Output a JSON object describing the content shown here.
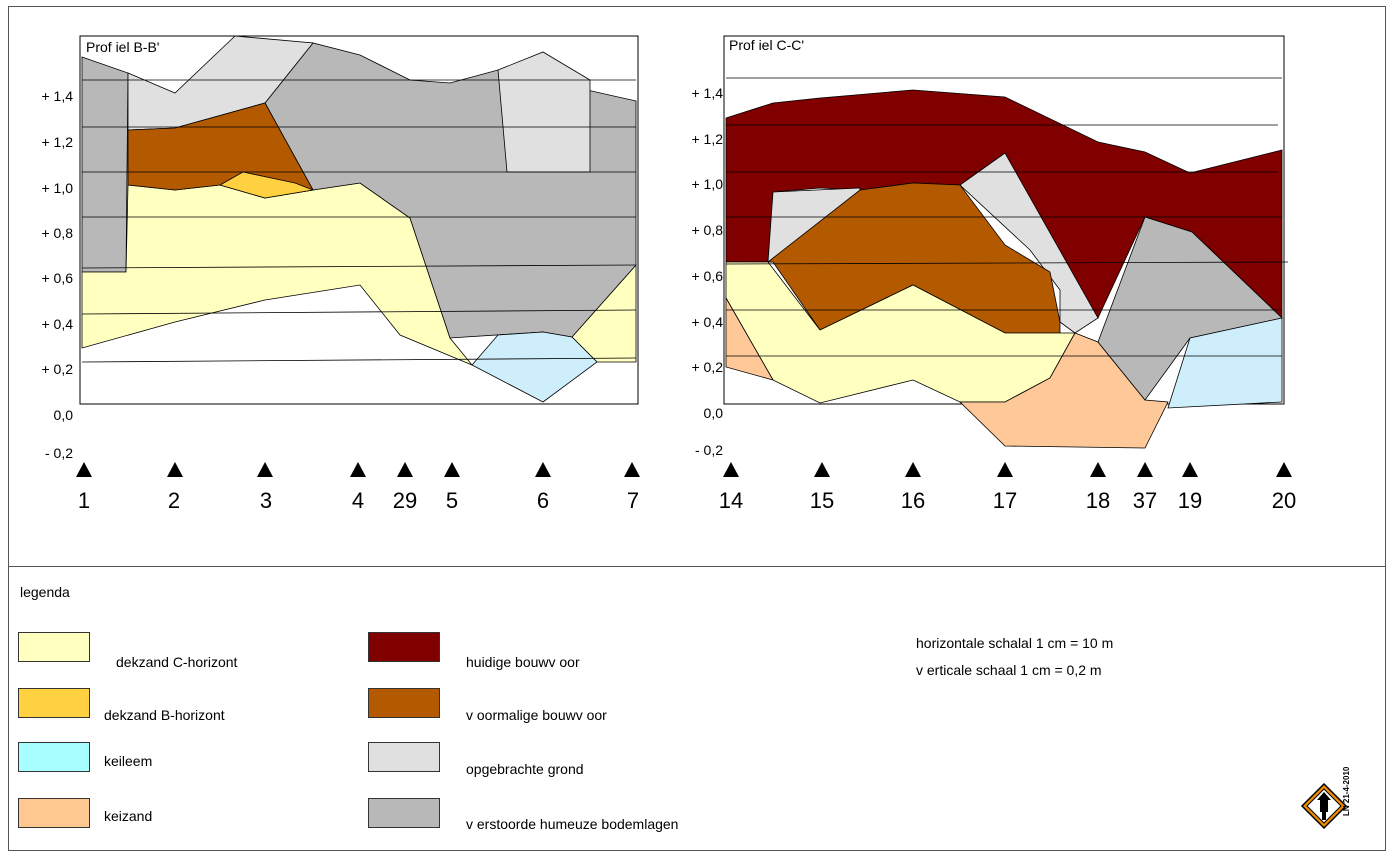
{
  "profiles": [
    {
      "id": "bb",
      "title": "Prof iel B-B'",
      "y_labels": [
        "+ 1,4",
        "+ 1,2",
        "+ 1,0",
        "+ 0,8",
        "+ 0,6",
        "+ 0,4",
        "+ 0,2",
        "0,0",
        "- 0,2"
      ],
      "points": [
        "1",
        "2",
        "3",
        "4",
        "29",
        "5",
        "6",
        "7"
      ]
    },
    {
      "id": "cc",
      "title": "Prof iel C-C'",
      "y_labels": [
        "+ 1,4",
        "+ 1,2",
        "+ 1,0",
        "+ 0,8",
        "+ 0,6",
        "+ 0,4",
        "+ 0,2",
        "0,0",
        "- 0,2"
      ],
      "points": [
        "14",
        "15",
        "16",
        "17",
        "18",
        "37",
        "19",
        "20"
      ]
    }
  ],
  "legend": {
    "title": "legenda",
    "items": [
      {
        "label": "dekzand C-horizont",
        "color": "#ffffc0"
      },
      {
        "label": "dekzand B-horizont",
        "color": "#ffd040"
      },
      {
        "label": "keileem",
        "color": "#a8ffff"
      },
      {
        "label": "keizand",
        "color": "#ffc890"
      },
      {
        "label": "huidige bouwv oor",
        "color": "#800000"
      },
      {
        "label": "v oormalige bouwv oor",
        "color": "#b35900"
      },
      {
        "label": "opgebrachte grond",
        "color": "#e0e0e0"
      },
      {
        "label": "v erstoorde humeuze bodemlagen",
        "color": "#b8b8b8"
      }
    ]
  },
  "scale": {
    "horizontal": "horizontale schalal 1 cm = 10 m",
    "vertical": "v erticale schaal 1 cm = 0,2 m"
  },
  "logo_text": "LN 21-4-2010",
  "colors": {
    "c_horizon": "#ffffc0",
    "b_horizon": "#ffd040",
    "keileem_diagram": "#cdeefa",
    "keizand": "#ffc898",
    "huidige": "#800000",
    "voormalige": "#b35900",
    "opgebracht": "#e0e0e0",
    "verstoord": "#b8b8b8"
  }
}
